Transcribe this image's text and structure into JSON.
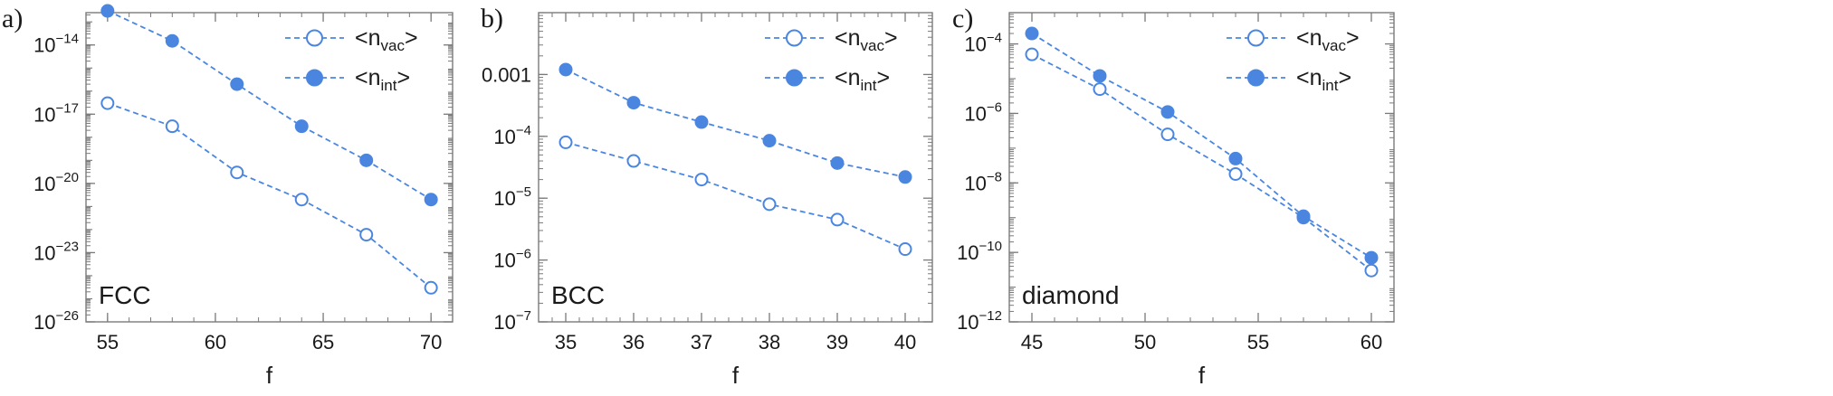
{
  "colors": {
    "series": "#4a86e0",
    "frame": "#7a7a7a",
    "text": "#1a1a1a"
  },
  "chart_data": [
    {
      "panel": "a)",
      "type": "line",
      "structure_label": "FCC",
      "xlabel": "f",
      "ylabel": "",
      "xlim": [
        54,
        71
      ],
      "ylog": true,
      "ylim_exp": [
        -26,
        -12.6
      ],
      "xticks": [
        55,
        60,
        65,
        70
      ],
      "yticks": [
        {
          "exp": -14,
          "label": "10",
          "sup": "−14"
        },
        {
          "exp": -17,
          "label": "10",
          "sup": "−17"
        },
        {
          "exp": -20,
          "label": "10",
          "sup": "−20"
        },
        {
          "exp": -23,
          "label": "10",
          "sup": "−23"
        },
        {
          "exp": -26,
          "label": "10",
          "sup": "−26"
        }
      ],
      "grid": false,
      "legend_position": "top-right",
      "x": [
        55,
        58,
        61,
        64,
        67,
        70
      ],
      "series": [
        {
          "name": "<n",
          "sub": "vac",
          "close": ">",
          "marker": "open",
          "values": [
            3e-17,
            3e-18,
            3e-20,
            2e-21,
            6e-23,
            3e-25
          ]
        },
        {
          "name": "<n",
          "sub": "int",
          "close": ">",
          "marker": "filled",
          "values": [
            3e-13,
            1.5e-14,
            2e-16,
            3e-18,
            1e-19,
            2e-21
          ]
        }
      ]
    },
    {
      "panel": "b)",
      "type": "line",
      "structure_label": "BCC",
      "xlabel": "f",
      "ylabel": "",
      "xlim": [
        34.6,
        40.4
      ],
      "ylog": true,
      "ylim_exp": [
        -7,
        -2
      ],
      "xticks": [
        35,
        36,
        37,
        38,
        39,
        40
      ],
      "yticks": [
        {
          "exp": -3,
          "label": "0.001",
          "sup": ""
        },
        {
          "exp": -4,
          "label": "10",
          "sup": "−4"
        },
        {
          "exp": -5,
          "label": "10",
          "sup": "−5"
        },
        {
          "exp": -6,
          "label": "10",
          "sup": "−6"
        },
        {
          "exp": -7,
          "label": "10",
          "sup": "−7"
        }
      ],
      "grid": false,
      "legend_position": "top-right",
      "x": [
        35,
        36,
        37,
        38,
        39,
        40
      ],
      "series": [
        {
          "name": "<n",
          "sub": "vac",
          "close": ">",
          "marker": "open",
          "values": [
            8e-05,
            4e-05,
            2e-05,
            8e-06,
            4.5e-06,
            1.5e-06
          ]
        },
        {
          "name": "<n",
          "sub": "int",
          "close": ">",
          "marker": "filled",
          "values": [
            0.0012,
            0.00035,
            0.00017,
            8.5e-05,
            3.7e-05,
            2.2e-05
          ]
        }
      ]
    },
    {
      "panel": "c)",
      "type": "line",
      "structure_label": "diamond",
      "xlabel": "f",
      "ylabel": "",
      "xlim": [
        44,
        61
      ],
      "ylog": true,
      "ylim_exp": [
        -12,
        -3.1
      ],
      "xticks": [
        45,
        50,
        55,
        60
      ],
      "yticks": [
        {
          "exp": -4,
          "label": "10",
          "sup": "−4"
        },
        {
          "exp": -6,
          "label": "10",
          "sup": "−6"
        },
        {
          "exp": -8,
          "label": "10",
          "sup": "−8"
        },
        {
          "exp": -10,
          "label": "10",
          "sup": "−10"
        },
        {
          "exp": -12,
          "label": "10",
          "sup": "−12"
        }
      ],
      "grid": false,
      "legend_position": "top-right",
      "x": [
        45,
        48,
        51,
        54,
        57,
        60
      ],
      "series": [
        {
          "name": "<n",
          "sub": "vac",
          "close": ">",
          "marker": "open",
          "values": [
            5e-05,
            5e-06,
            2.5e-07,
            1.8e-08,
            1e-09,
            3e-11
          ]
        },
        {
          "name": "<n",
          "sub": "int",
          "close": ">",
          "marker": "filled",
          "values": [
            0.0002,
            1.2e-05,
            1.1e-06,
            5e-08,
            1.1e-09,
            7e-11
          ]
        }
      ]
    }
  ]
}
